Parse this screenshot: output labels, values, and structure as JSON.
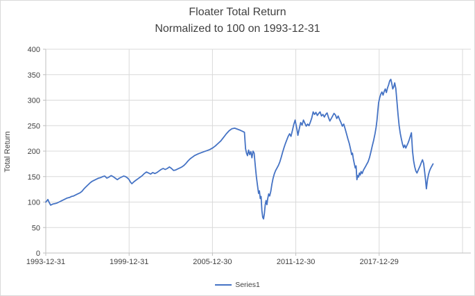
{
  "chart_data": {
    "type": "line",
    "title_lines": [
      "Floater Total Return",
      "Normalized to 100 on 1993-12-31"
    ],
    "xlabel": "",
    "ylabel": "Total Return",
    "ylim": [
      0,
      400
    ],
    "yticks": [
      0,
      50,
      100,
      150,
      200,
      250,
      300,
      350,
      400
    ],
    "xticks": [
      {
        "label": "1993-12-31",
        "t": 0
      },
      {
        "label": "1999-12-31",
        "t": 6
      },
      {
        "label": "2005-12-30",
        "t": 12
      },
      {
        "label": "2011-12-30",
        "t": 18
      },
      {
        "label": "2017-12-29",
        "t": 24
      }
    ],
    "x_axis_range_years": [
      0,
      30.6
    ],
    "grid": "both",
    "legend_position": "bottom",
    "colors": {
      "series": "#4472C4",
      "gridline": "#D9D9D9",
      "axis": "#BFBFBF",
      "text": "#404040",
      "frame_border": "#D9D9D9"
    },
    "x_units": "years since 1993-12-31",
    "series": [
      {
        "name": "Series1",
        "color": "#4472C4",
        "points": [
          [
            0,
            100
          ],
          [
            0.1,
            103
          ],
          [
            0.15,
            105
          ],
          [
            0.25,
            99
          ],
          [
            0.35,
            94
          ],
          [
            0.5,
            96
          ],
          [
            0.65,
            97
          ],
          [
            0.8,
            98
          ],
          [
            0.95,
            100
          ],
          [
            1.1,
            102
          ],
          [
            1.25,
            104
          ],
          [
            1.4,
            106
          ],
          [
            1.55,
            108
          ],
          [
            1.7,
            109
          ],
          [
            1.85,
            111
          ],
          [
            2.0,
            112
          ],
          [
            2.15,
            114
          ],
          [
            2.3,
            116
          ],
          [
            2.45,
            118
          ],
          [
            2.6,
            121
          ],
          [
            2.75,
            126
          ],
          [
            2.9,
            130
          ],
          [
            3.05,
            134
          ],
          [
            3.2,
            138
          ],
          [
            3.35,
            141
          ],
          [
            3.5,
            143
          ],
          [
            3.65,
            145
          ],
          [
            3.8,
            147
          ],
          [
            3.95,
            148
          ],
          [
            4.1,
            150
          ],
          [
            4.25,
            151
          ],
          [
            4.4,
            147
          ],
          [
            4.55,
            149
          ],
          [
            4.7,
            152
          ],
          [
            4.85,
            150
          ],
          [
            5.0,
            147
          ],
          [
            5.15,
            144
          ],
          [
            5.3,
            147
          ],
          [
            5.45,
            149
          ],
          [
            5.6,
            151
          ],
          [
            5.75,
            150
          ],
          [
            5.9,
            147
          ],
          [
            6.0,
            144
          ],
          [
            6.1,
            139
          ],
          [
            6.2,
            136
          ],
          [
            6.35,
            140
          ],
          [
            6.5,
            143
          ],
          [
            6.65,
            146
          ],
          [
            6.8,
            149
          ],
          [
            6.95,
            152
          ],
          [
            7.1,
            156
          ],
          [
            7.25,
            159
          ],
          [
            7.4,
            157
          ],
          [
            7.55,
            155
          ],
          [
            7.7,
            158
          ],
          [
            7.85,
            156
          ],
          [
            8.0,
            158
          ],
          [
            8.15,
            161
          ],
          [
            8.3,
            164
          ],
          [
            8.45,
            166
          ],
          [
            8.6,
            164
          ],
          [
            8.75,
            166
          ],
          [
            8.9,
            169
          ],
          [
            9.05,
            166
          ],
          [
            9.2,
            162
          ],
          [
            9.35,
            163
          ],
          [
            9.5,
            165
          ],
          [
            9.65,
            167
          ],
          [
            9.8,
            169
          ],
          [
            9.95,
            172
          ],
          [
            10.1,
            176
          ],
          [
            10.25,
            181
          ],
          [
            10.4,
            185
          ],
          [
            10.55,
            188
          ],
          [
            10.7,
            191
          ],
          [
            10.85,
            193
          ],
          [
            11.0,
            195
          ],
          [
            11.2,
            197
          ],
          [
            11.4,
            199
          ],
          [
            11.6,
            201
          ],
          [
            11.8,
            203
          ],
          [
            12.0,
            206
          ],
          [
            12.2,
            210
          ],
          [
            12.4,
            215
          ],
          [
            12.6,
            220
          ],
          [
            12.8,
            227
          ],
          [
            13.0,
            234
          ],
          [
            13.2,
            240
          ],
          [
            13.4,
            244
          ],
          [
            13.6,
            245
          ],
          [
            13.8,
            243
          ],
          [
            14.0,
            241
          ],
          [
            14.15,
            239
          ],
          [
            14.3,
            237
          ],
          [
            14.38,
            205
          ],
          [
            14.45,
            196
          ],
          [
            14.52,
            191
          ],
          [
            14.6,
            202
          ],
          [
            14.68,
            193
          ],
          [
            14.76,
            199
          ],
          [
            14.84,
            187
          ],
          [
            14.92,
            200
          ],
          [
            15.0,
            196
          ],
          [
            15.08,
            172
          ],
          [
            15.16,
            150
          ],
          [
            15.24,
            133
          ],
          [
            15.32,
            117
          ],
          [
            15.38,
            122
          ],
          [
            15.44,
            107
          ],
          [
            15.5,
            111
          ],
          [
            15.56,
            83
          ],
          [
            15.62,
            70
          ],
          [
            15.68,
            67
          ],
          [
            15.74,
            78
          ],
          [
            15.8,
            95
          ],
          [
            15.86,
            103
          ],
          [
            15.92,
            95
          ],
          [
            15.98,
            107
          ],
          [
            16.05,
            116
          ],
          [
            16.12,
            112
          ],
          [
            16.2,
            121
          ],
          [
            16.28,
            135
          ],
          [
            16.36,
            146
          ],
          [
            16.45,
            155
          ],
          [
            16.55,
            162
          ],
          [
            16.65,
            167
          ],
          [
            16.75,
            172
          ],
          [
            16.85,
            179
          ],
          [
            16.95,
            188
          ],
          [
            17.05,
            198
          ],
          [
            17.15,
            207
          ],
          [
            17.25,
            215
          ],
          [
            17.35,
            222
          ],
          [
            17.45,
            229
          ],
          [
            17.55,
            234
          ],
          [
            17.65,
            229
          ],
          [
            17.75,
            240
          ],
          [
            17.85,
            252
          ],
          [
            17.95,
            261
          ],
          [
            18.0,
            254
          ],
          [
            18.08,
            243
          ],
          [
            18.15,
            231
          ],
          [
            18.25,
            244
          ],
          [
            18.35,
            256
          ],
          [
            18.45,
            251
          ],
          [
            18.55,
            261
          ],
          [
            18.65,
            255
          ],
          [
            18.75,
            249
          ],
          [
            18.85,
            253
          ],
          [
            18.95,
            250
          ],
          [
            19.05,
            257
          ],
          [
            19.15,
            265
          ],
          [
            19.25,
            277
          ],
          [
            19.35,
            272
          ],
          [
            19.45,
            276
          ],
          [
            19.55,
            270
          ],
          [
            19.65,
            274
          ],
          [
            19.75,
            277
          ],
          [
            19.85,
            269
          ],
          [
            19.95,
            272
          ],
          [
            20.05,
            267
          ],
          [
            20.15,
            272
          ],
          [
            20.25,
            275
          ],
          [
            20.35,
            266
          ],
          [
            20.45,
            259
          ],
          [
            20.55,
            264
          ],
          [
            20.65,
            269
          ],
          [
            20.75,
            274
          ],
          [
            20.85,
            271
          ],
          [
            20.95,
            264
          ],
          [
            21.05,
            269
          ],
          [
            21.15,
            262
          ],
          [
            21.25,
            256
          ],
          [
            21.35,
            249
          ],
          [
            21.45,
            253
          ],
          [
            21.55,
            244
          ],
          [
            21.65,
            234
          ],
          [
            21.75,
            224
          ],
          [
            21.85,
            215
          ],
          [
            21.95,
            203
          ],
          [
            22.02,
            193
          ],
          [
            22.08,
            196
          ],
          [
            22.14,
            185
          ],
          [
            22.2,
            177
          ],
          [
            22.28,
            167
          ],
          [
            22.34,
            171
          ],
          [
            22.4,
            144
          ],
          [
            22.46,
            152
          ],
          [
            22.52,
            149
          ],
          [
            22.58,
            157
          ],
          [
            22.64,
            153
          ],
          [
            22.7,
            160
          ],
          [
            22.78,
            156
          ],
          [
            22.86,
            162
          ],
          [
            22.94,
            166
          ],
          [
            23.02,
            170
          ],
          [
            23.1,
            174
          ],
          [
            23.2,
            179
          ],
          [
            23.3,
            187
          ],
          [
            23.4,
            198
          ],
          [
            23.5,
            210
          ],
          [
            23.6,
            221
          ],
          [
            23.7,
            234
          ],
          [
            23.78,
            247
          ],
          [
            23.84,
            260
          ],
          [
            23.9,
            278
          ],
          [
            23.96,
            295
          ],
          [
            24.04,
            305
          ],
          [
            24.12,
            312
          ],
          [
            24.2,
            316
          ],
          [
            24.28,
            310
          ],
          [
            24.36,
            317
          ],
          [
            24.44,
            322
          ],
          [
            24.52,
            315
          ],
          [
            24.6,
            324
          ],
          [
            24.68,
            330
          ],
          [
            24.76,
            338
          ],
          [
            24.84,
            341
          ],
          [
            24.9,
            334
          ],
          [
            24.98,
            322
          ],
          [
            25.06,
            327
          ],
          [
            25.12,
            334
          ],
          [
            25.2,
            323
          ],
          [
            25.28,
            298
          ],
          [
            25.36,
            272
          ],
          [
            25.44,
            250
          ],
          [
            25.52,
            235
          ],
          [
            25.6,
            224
          ],
          [
            25.68,
            214
          ],
          [
            25.76,
            207
          ],
          [
            25.84,
            212
          ],
          [
            25.92,
            206
          ],
          [
            26.0,
            211
          ],
          [
            26.08,
            216
          ],
          [
            26.16,
            222
          ],
          [
            26.24,
            229
          ],
          [
            26.32,
            236
          ],
          [
            26.4,
            200
          ],
          [
            26.48,
            181
          ],
          [
            26.56,
            169
          ],
          [
            26.64,
            161
          ],
          [
            26.72,
            157
          ],
          [
            26.8,
            162
          ],
          [
            26.88,
            167
          ],
          [
            26.96,
            172
          ],
          [
            27.04,
            178
          ],
          [
            27.12,
            183
          ],
          [
            27.2,
            176
          ],
          [
            27.28,
            158
          ],
          [
            27.34,
            143
          ],
          [
            27.4,
            126
          ],
          [
            27.48,
            144
          ],
          [
            27.56,
            155
          ],
          [
            27.64,
            162
          ],
          [
            27.72,
            167
          ],
          [
            27.8,
            171
          ],
          [
            27.88,
            175
          ]
        ]
      }
    ]
  }
}
